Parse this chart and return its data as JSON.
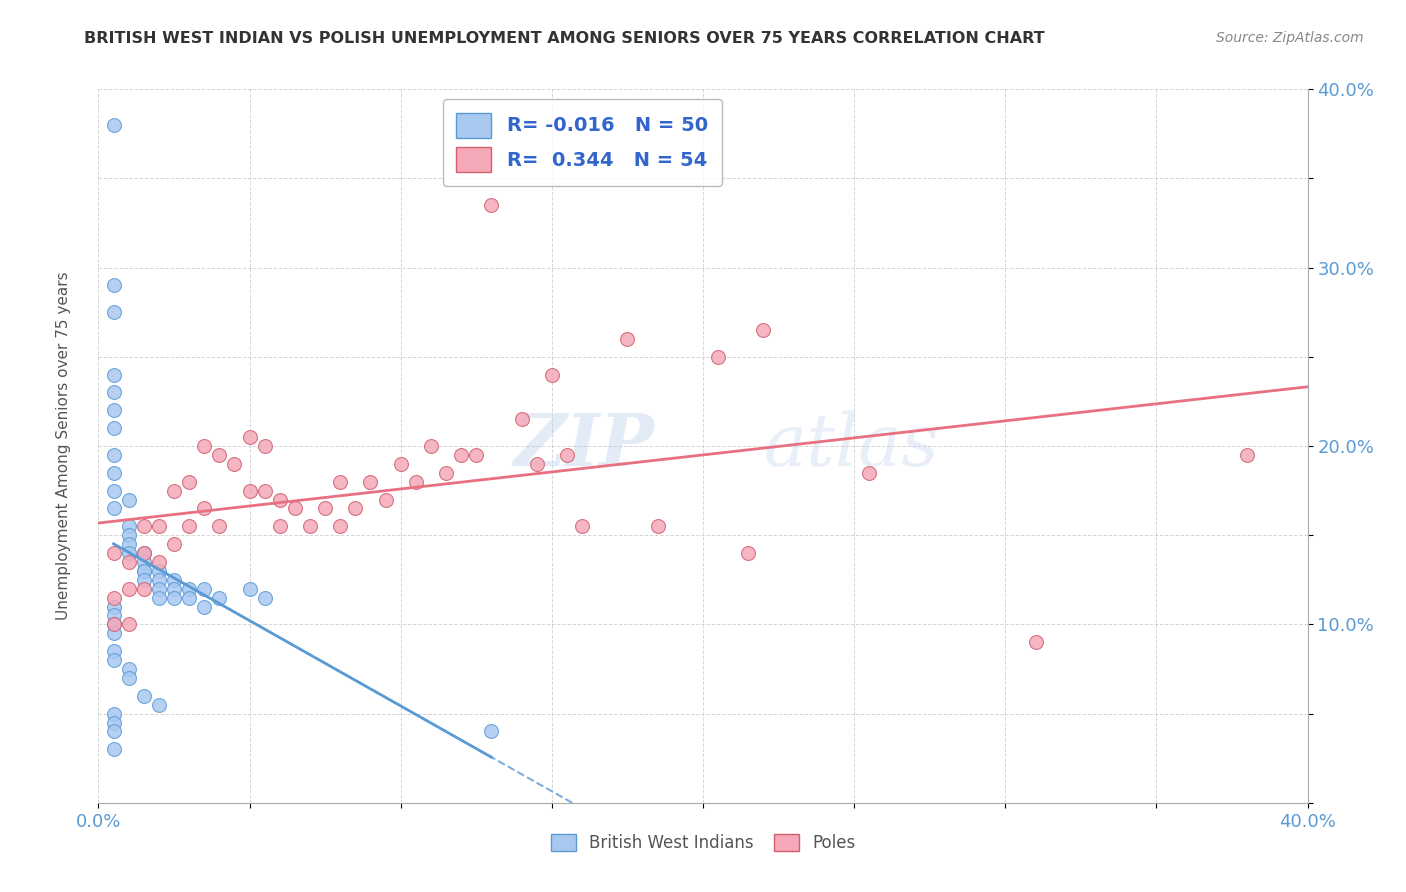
{
  "title": "BRITISH WEST INDIAN VS POLISH UNEMPLOYMENT AMONG SENIORS OVER 75 YEARS CORRELATION CHART",
  "source": "Source: ZipAtlas.com",
  "ylabel": "Unemployment Among Seniors over 75 years",
  "xlim": [
    0.0,
    0.4
  ],
  "ylim": [
    0.0,
    0.4
  ],
  "xticks": [
    0.0,
    0.05,
    0.1,
    0.15,
    0.2,
    0.25,
    0.3,
    0.35,
    0.4
  ],
  "yticks": [
    0.0,
    0.05,
    0.1,
    0.15,
    0.2,
    0.25,
    0.3,
    0.35,
    0.4
  ],
  "xticklabels": [
    "0.0%",
    "",
    "",
    "",
    "",
    "",
    "",
    "",
    "40.0%"
  ],
  "yticklabels": [
    "",
    "",
    "10.0%",
    "",
    "20.0%",
    "",
    "30.0%",
    "",
    "40.0%"
  ],
  "blue_color": "#A8C8F0",
  "pink_color": "#F4A8B8",
  "blue_line_color": "#5B9BD5",
  "pink_line_color": "#E87080",
  "R_blue": -0.016,
  "N_blue": 50,
  "R_pink": 0.344,
  "N_pink": 54,
  "blue_points_x": [
    0.005,
    0.005,
    0.005,
    0.005,
    0.005,
    0.005,
    0.005,
    0.005,
    0.005,
    0.005,
    0.005,
    0.01,
    0.01,
    0.01,
    0.01,
    0.01,
    0.015,
    0.015,
    0.015,
    0.015,
    0.015,
    0.02,
    0.02,
    0.02,
    0.02,
    0.025,
    0.025,
    0.025,
    0.03,
    0.03,
    0.035,
    0.035,
    0.04,
    0.05,
    0.055,
    0.005,
    0.005,
    0.005,
    0.005,
    0.005,
    0.005,
    0.01,
    0.01,
    0.015,
    0.02,
    0.005,
    0.005,
    0.005,
    0.13,
    0.005
  ],
  "blue_points_y": [
    0.38,
    0.29,
    0.275,
    0.24,
    0.23,
    0.22,
    0.21,
    0.195,
    0.185,
    0.175,
    0.165,
    0.17,
    0.155,
    0.15,
    0.145,
    0.14,
    0.14,
    0.135,
    0.13,
    0.13,
    0.125,
    0.13,
    0.125,
    0.12,
    0.115,
    0.125,
    0.12,
    0.115,
    0.12,
    0.115,
    0.12,
    0.11,
    0.115,
    0.12,
    0.115,
    0.11,
    0.105,
    0.1,
    0.095,
    0.085,
    0.08,
    0.075,
    0.07,
    0.06,
    0.055,
    0.05,
    0.045,
    0.04,
    0.04,
    0.03
  ],
  "pink_points_x": [
    0.005,
    0.005,
    0.005,
    0.01,
    0.01,
    0.01,
    0.015,
    0.015,
    0.015,
    0.02,
    0.02,
    0.025,
    0.025,
    0.03,
    0.03,
    0.035,
    0.035,
    0.04,
    0.04,
    0.045,
    0.05,
    0.05,
    0.055,
    0.055,
    0.06,
    0.06,
    0.065,
    0.07,
    0.075,
    0.08,
    0.08,
    0.085,
    0.09,
    0.095,
    0.1,
    0.105,
    0.11,
    0.115,
    0.12,
    0.125,
    0.13,
    0.14,
    0.145,
    0.15,
    0.155,
    0.16,
    0.175,
    0.185,
    0.205,
    0.215,
    0.22,
    0.255,
    0.31,
    0.38
  ],
  "pink_points_y": [
    0.14,
    0.115,
    0.1,
    0.135,
    0.12,
    0.1,
    0.155,
    0.14,
    0.12,
    0.155,
    0.135,
    0.175,
    0.145,
    0.18,
    0.155,
    0.2,
    0.165,
    0.195,
    0.155,
    0.19,
    0.205,
    0.175,
    0.2,
    0.175,
    0.17,
    0.155,
    0.165,
    0.155,
    0.165,
    0.18,
    0.155,
    0.165,
    0.18,
    0.17,
    0.19,
    0.18,
    0.2,
    0.185,
    0.195,
    0.195,
    0.335,
    0.215,
    0.19,
    0.24,
    0.195,
    0.155,
    0.26,
    0.155,
    0.25,
    0.14,
    0.265,
    0.185,
    0.09,
    0.195
  ],
  "watermark_zip": "ZIP",
  "watermark_atlas": "atlas",
  "background_color": "#FFFFFF",
  "grid_color": "#CCCCCC",
  "legend_label_blue": "British West Indians",
  "legend_label_pink": "Poles"
}
